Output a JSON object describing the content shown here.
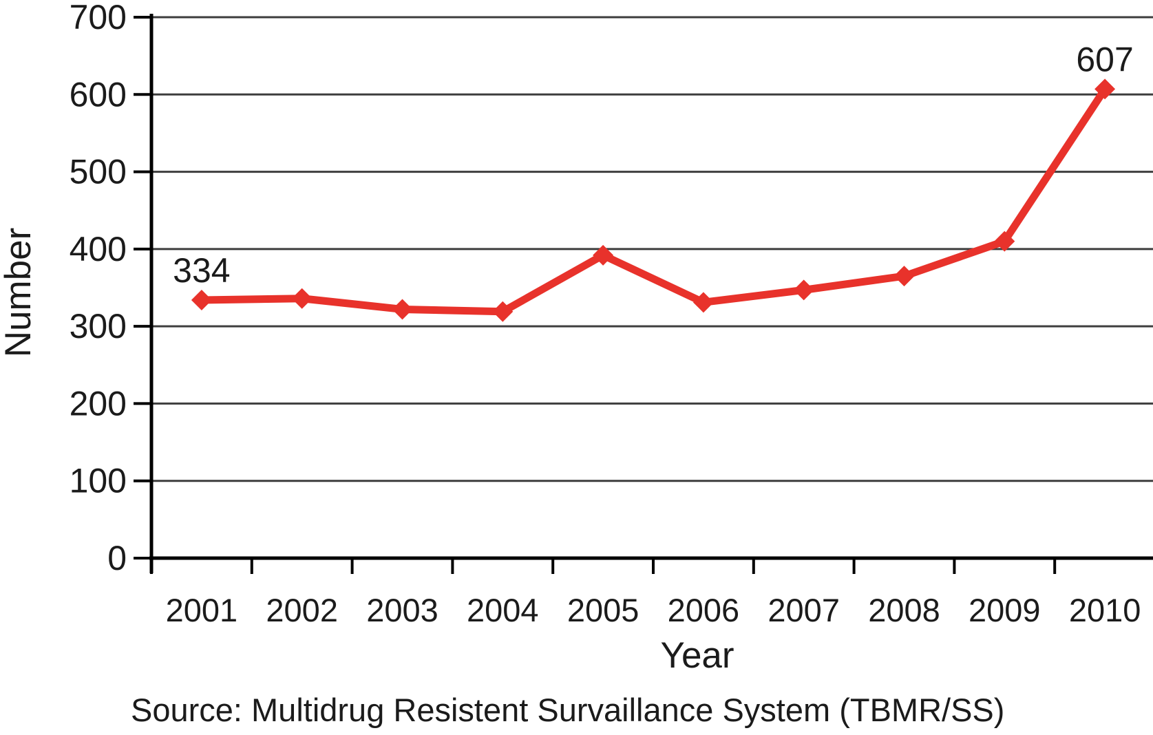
{
  "figure": {
    "background_color": "#ffffff",
    "text_color": "#1b1b1b",
    "grid_color": "#3d3d3d",
    "axis_color": "#000000"
  },
  "chart_data": {
    "type": "line",
    "title": "",
    "xlabel": "Year",
    "ylabel": "Number",
    "categories": [
      "2001",
      "2002",
      "2003",
      "2004",
      "2005",
      "2006",
      "2007",
      "2008",
      "2009",
      "2010"
    ],
    "values": [
      334,
      336,
      322,
      319,
      392,
      331,
      347,
      365,
      410,
      607
    ],
    "point_labels": [
      "334",
      "",
      "",
      "",
      "",
      "",
      "",
      "",
      "",
      "607"
    ],
    "ylim": [
      0,
      700
    ],
    "yticks": [
      0,
      100,
      200,
      300,
      400,
      500,
      600,
      700
    ],
    "grid": "horizontal",
    "legend": "none",
    "line_color": "#e8322b",
    "marker": "diamond"
  },
  "caption": {
    "source": "Source: Multidrug Resistent Survaillance System (TBMR/SS)"
  }
}
